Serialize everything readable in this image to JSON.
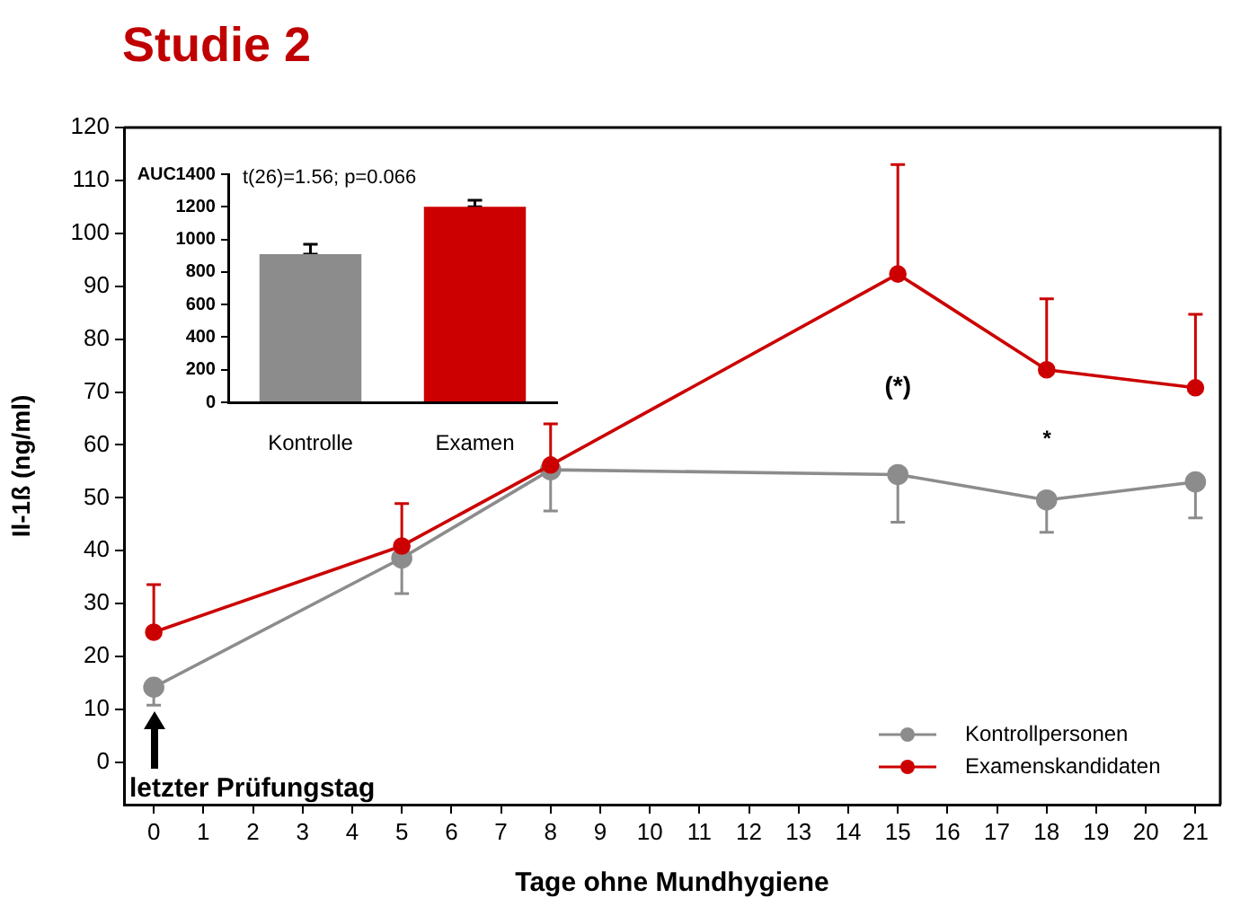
{
  "chart_data": [
    {
      "type": "line",
      "title": "Studie 2",
      "xlabel": "Tage ohne Mundhygiene",
      "ylabel": "Il-1ß (ng/ml)",
      "x": [
        0,
        5,
        8,
        15,
        18,
        21
      ],
      "series": [
        {
          "name": "Kontrollpersonen",
          "color": "#8c8c8c",
          "values": [
            14.2,
            38.6,
            55.3,
            54.4,
            49.6,
            53
          ],
          "errors": [
            [
              10.8,
              14.2
            ],
            [
              31.9,
              38.6
            ],
            [
              47.5,
              55.3
            ],
            [
              45.4,
              54.4
            ],
            [
              43.5,
              49.6
            ],
            [
              46.2,
              53
            ]
          ]
        },
        {
          "name": "Examenskandidaten",
          "color": "#cc0000",
          "values": [
            24.6,
            40.9,
            56.2,
            92.3,
            74.2,
            70.8
          ],
          "errors": [
            [
              24.6,
              33.6
            ],
            [
              40.9,
              48.9
            ],
            [
              56.2,
              64
            ],
            [
              92.3,
              113
            ],
            [
              74.2,
              87.6
            ],
            [
              70.8,
              84.7
            ]
          ]
        }
      ],
      "xlim": [
        -0.6,
        21.5
      ],
      "xticks": [
        0,
        1,
        2,
        3,
        4,
        5,
        6,
        7,
        8,
        9,
        10,
        11,
        12,
        13,
        14,
        15,
        16,
        17,
        18,
        19,
        20,
        21
      ],
      "ylim": [
        -8,
        120
      ],
      "yticks": [
        0,
        10,
        20,
        30,
        40,
        50,
        60,
        70,
        80,
        90,
        100,
        110,
        120
      ],
      "grid": false,
      "legend": "bottom right",
      "marker": "circle",
      "line_style": "solid",
      "annotations": [
        "(*)",
        "*",
        "letzter Prüfungstag"
      ]
    },
    {
      "type": "bar",
      "ylabel": "AUC",
      "categories": [
        "Kontrolle",
        "Examen"
      ],
      "colors": [
        "#8c8c8c",
        "#cc0000"
      ],
      "values": [
        910,
        1200
      ],
      "errors": [
        [
          910,
          970
        ],
        [
          1200,
          1240
        ]
      ],
      "ylim": [
        0,
        1400
      ],
      "yticks": [
        0,
        200,
        400,
        600,
        800,
        1000,
        1200,
        1400
      ],
      "grid": false,
      "annotations": [
        "t(26)=1.56; p=0.066"
      ]
    }
  ]
}
